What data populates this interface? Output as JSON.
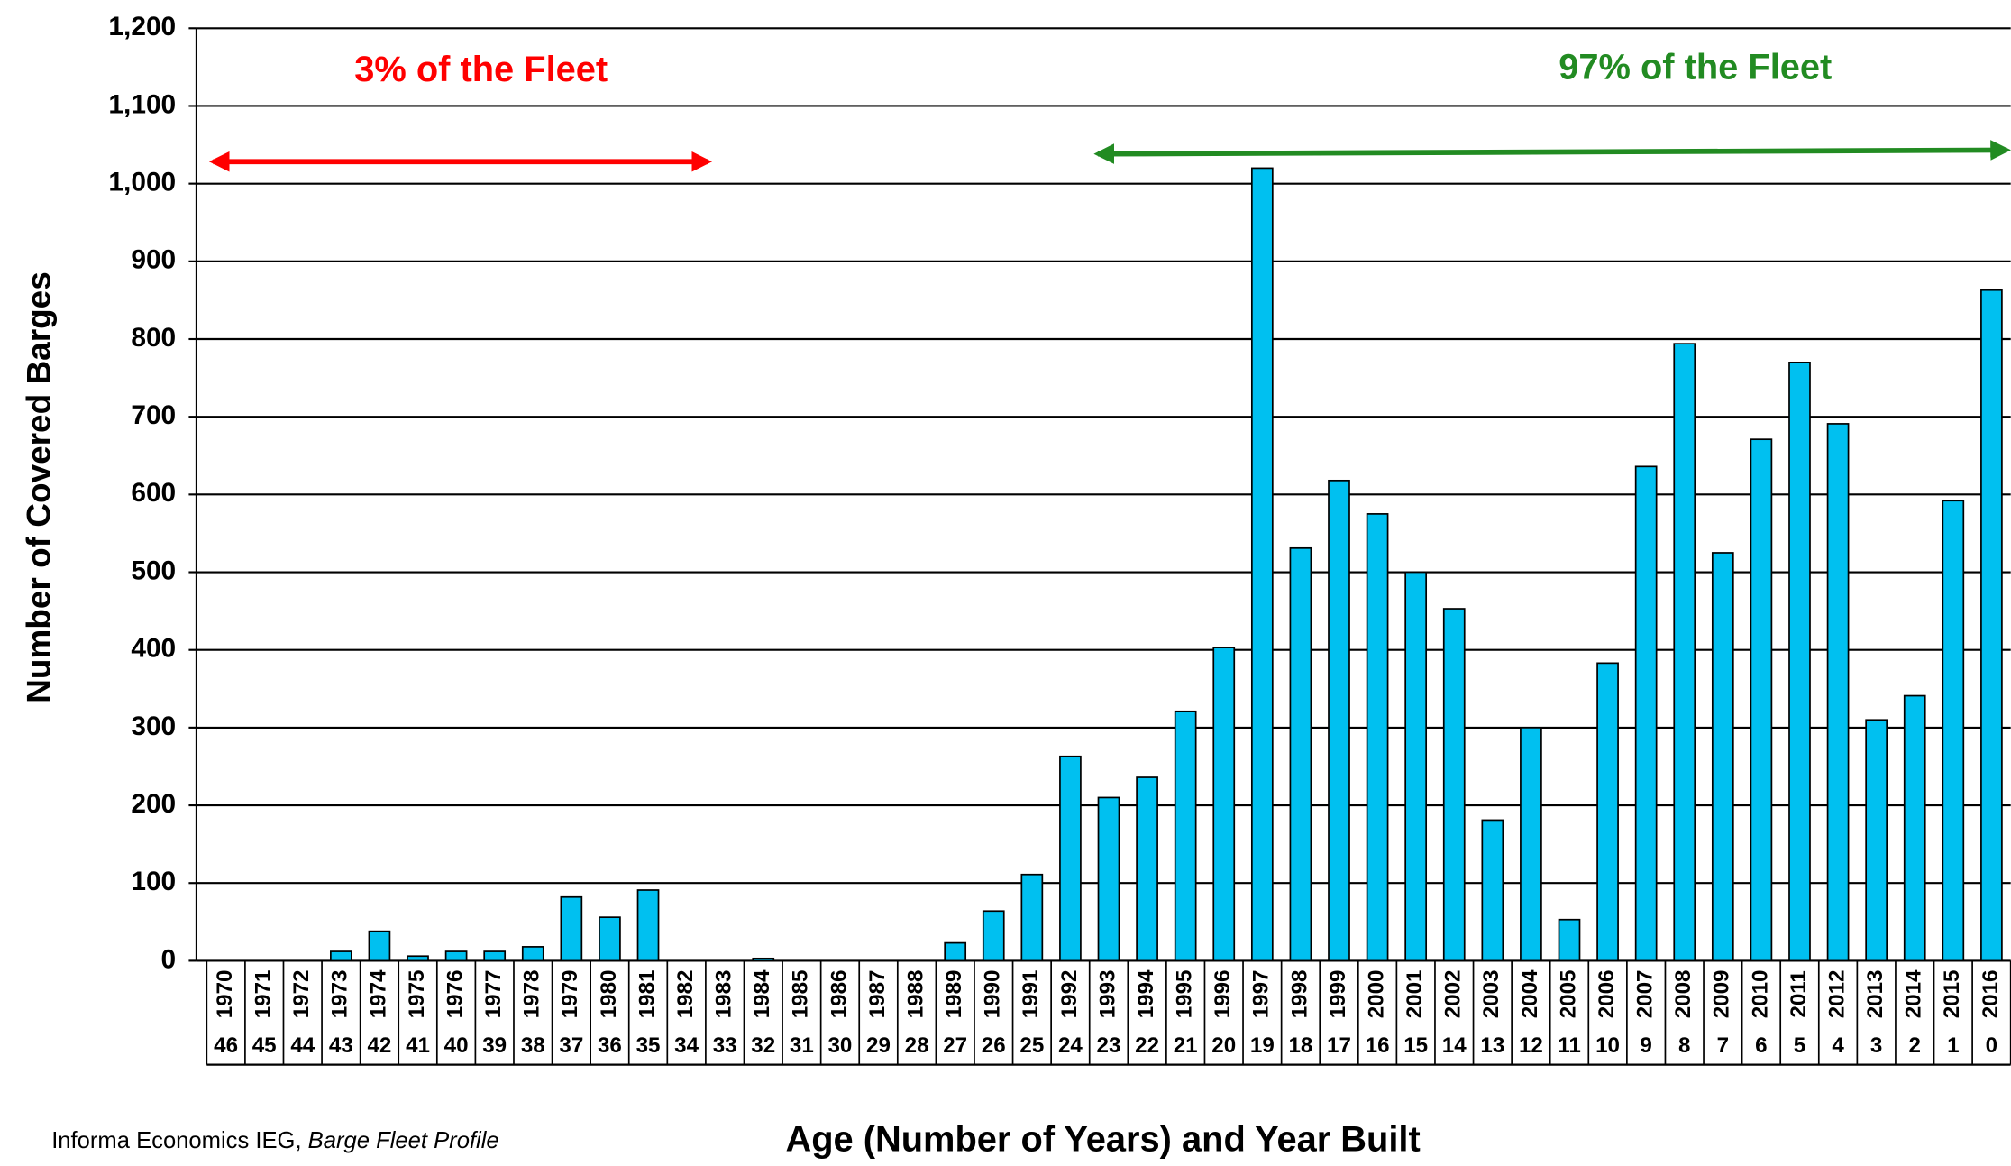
{
  "chart_data": {
    "type": "bar",
    "y_axis_title": "Number of Covered Barges",
    "x_axis_title": "Age (Number of Years) and Year Built",
    "annotations": [
      "3% of the Fleet",
      "97% of the Fleet"
    ],
    "source": "Informa  Economics IEG,",
    "source_title": "Barge Fleet Profile",
    "categories": [
      "1970",
      "1971",
      "1972",
      "1973",
      "1974",
      "1975",
      "1976",
      "1977",
      "1978",
      "1979",
      "1980",
      "1981",
      "1982",
      "1983",
      "1984",
      "1985",
      "1986",
      "1987",
      "1988",
      "1989",
      "1990",
      "1991",
      "1992",
      "1993",
      "1994",
      "1995",
      "1996",
      "1997",
      "1998",
      "1999",
      "2000",
      "2001",
      "2002",
      "2003",
      "2004",
      "2005",
      "2006",
      "2007",
      "2008",
      "2009",
      "2010",
      "2011",
      "2012",
      "2013",
      "2014",
      "2015",
      "2016"
    ],
    "ages": [
      46,
      45,
      44,
      43,
      42,
      41,
      40,
      39,
      38,
      37,
      36,
      35,
      34,
      33,
      32,
      31,
      30,
      29,
      28,
      27,
      26,
      25,
      24,
      23,
      22,
      21,
      20,
      19,
      18,
      17,
      16,
      15,
      14,
      13,
      12,
      11,
      10,
      9,
      8,
      7,
      6,
      5,
      4,
      3,
      2,
      1,
      0
    ],
    "values": [
      0,
      0,
      0,
      12,
      38,
      6,
      12,
      12,
      18,
      82,
      56,
      91,
      0,
      0,
      3,
      0,
      0,
      0,
      0,
      23,
      64,
      111,
      263,
      210,
      236,
      321,
      403,
      1020,
      531,
      618,
      575,
      500,
      453,
      181,
      300,
      53,
      383,
      636,
      794,
      525,
      671,
      770,
      691,
      310,
      341,
      592,
      863
    ],
    "color": "#00c0f0",
    "ylim": [
      0,
      1200
    ],
    "yticks": [
      0,
      100,
      200,
      300,
      400,
      500,
      600,
      700,
      800,
      900,
      {
        "value": 1000,
        "label": "1,000"
      },
      {
        "value": 1100,
        "label": "1,100"
      },
      {
        "value": 1200,
        "label": "1,200"
      }
    ],
    "grid": true
  }
}
